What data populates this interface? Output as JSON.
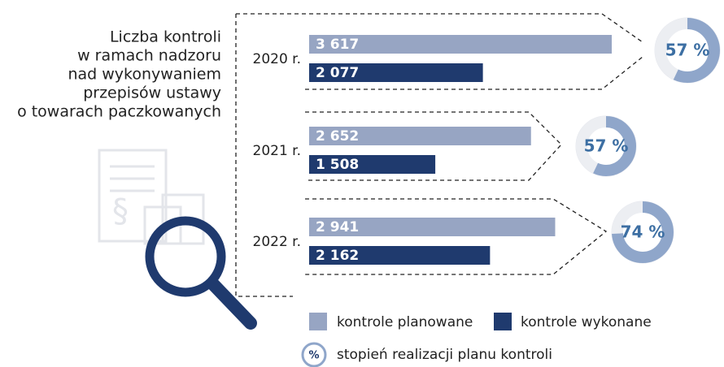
{
  "chart_data": {
    "type": "bar",
    "title": [
      "Liczba kontroli",
      "w ramach nadzoru",
      "nad wykonywaniem",
      "przepisów ustawy",
      "o towarach paczkowanych"
    ],
    "categories": [
      "2020 r.",
      "2021 r.",
      "2022 r."
    ],
    "series": [
      {
        "name": "kontrole planowane",
        "color": "#97a5c3",
        "values": [
          3617,
          2652,
          2941
        ],
        "value_labels": [
          "3 617",
          "2 652",
          "2 941"
        ]
      },
      {
        "name": "kontrole wykonane",
        "color": "#1f3a6e",
        "values": [
          2077,
          1508,
          2162
        ],
        "value_labels": [
          "2 077",
          "1 508",
          "2 162"
        ]
      }
    ],
    "percent": {
      "name": "stopień realizacji planu kontroli",
      "symbol": "%",
      "color": "#8fa6ca",
      "values": [
        57,
        57,
        74
      ],
      "value_labels": [
        "57 %",
        "57 %",
        "74 %"
      ]
    }
  }
}
